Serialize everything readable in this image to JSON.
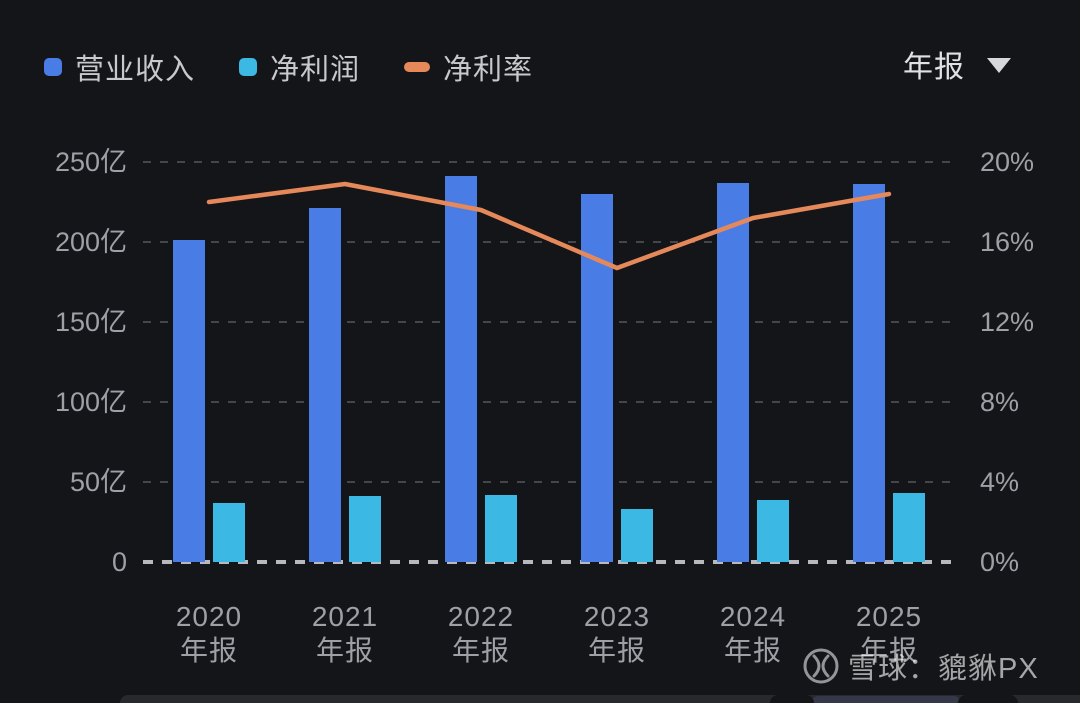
{
  "legend": {
    "items": [
      {
        "label": "营业收入",
        "color": "#4a7ce6",
        "marker": "square"
      },
      {
        "label": "净利润",
        "color": "#3bb9e4",
        "marker": "square"
      },
      {
        "label": "净利率",
        "color": "#e5895b",
        "marker": "dash"
      }
    ]
  },
  "period_selector": {
    "label": "年报",
    "icon": "caret-down"
  },
  "chart_data": {
    "type": "bar+line",
    "years": [
      "2020",
      "2021",
      "2022",
      "2023",
      "2024",
      "2025"
    ],
    "period_suffix": "年报",
    "series": [
      {
        "name": "营业收入",
        "type": "bar",
        "axis": "left",
        "unit": "亿",
        "color": "#4a7ce6",
        "values": [
          201,
          221,
          241,
          230,
          237,
          236
        ]
      },
      {
        "name": "净利润",
        "type": "bar",
        "axis": "left",
        "unit": "亿",
        "color": "#3bb9e4",
        "values": [
          37,
          41,
          42,
          33,
          39,
          43
        ]
      },
      {
        "name": "净利率",
        "type": "line",
        "axis": "right",
        "unit": "%",
        "color": "#e5895b",
        "values": [
          18.0,
          18.9,
          17.6,
          14.7,
          17.2,
          18.4
        ]
      }
    ],
    "y_left": {
      "ticks": [
        "250亿",
        "200亿",
        "150亿",
        "100亿",
        "50亿",
        "0"
      ],
      "min": 0,
      "max": 250
    },
    "y_right": {
      "ticks": [
        "20%",
        "16%",
        "12%",
        "8%",
        "4%",
        "0%"
      ],
      "min": 0,
      "max": 20
    },
    "grid": "dashed horizontal",
    "legend_position": "top-left",
    "background": "#141518"
  },
  "watermark": {
    "text": "雪球：貔貅PX"
  }
}
